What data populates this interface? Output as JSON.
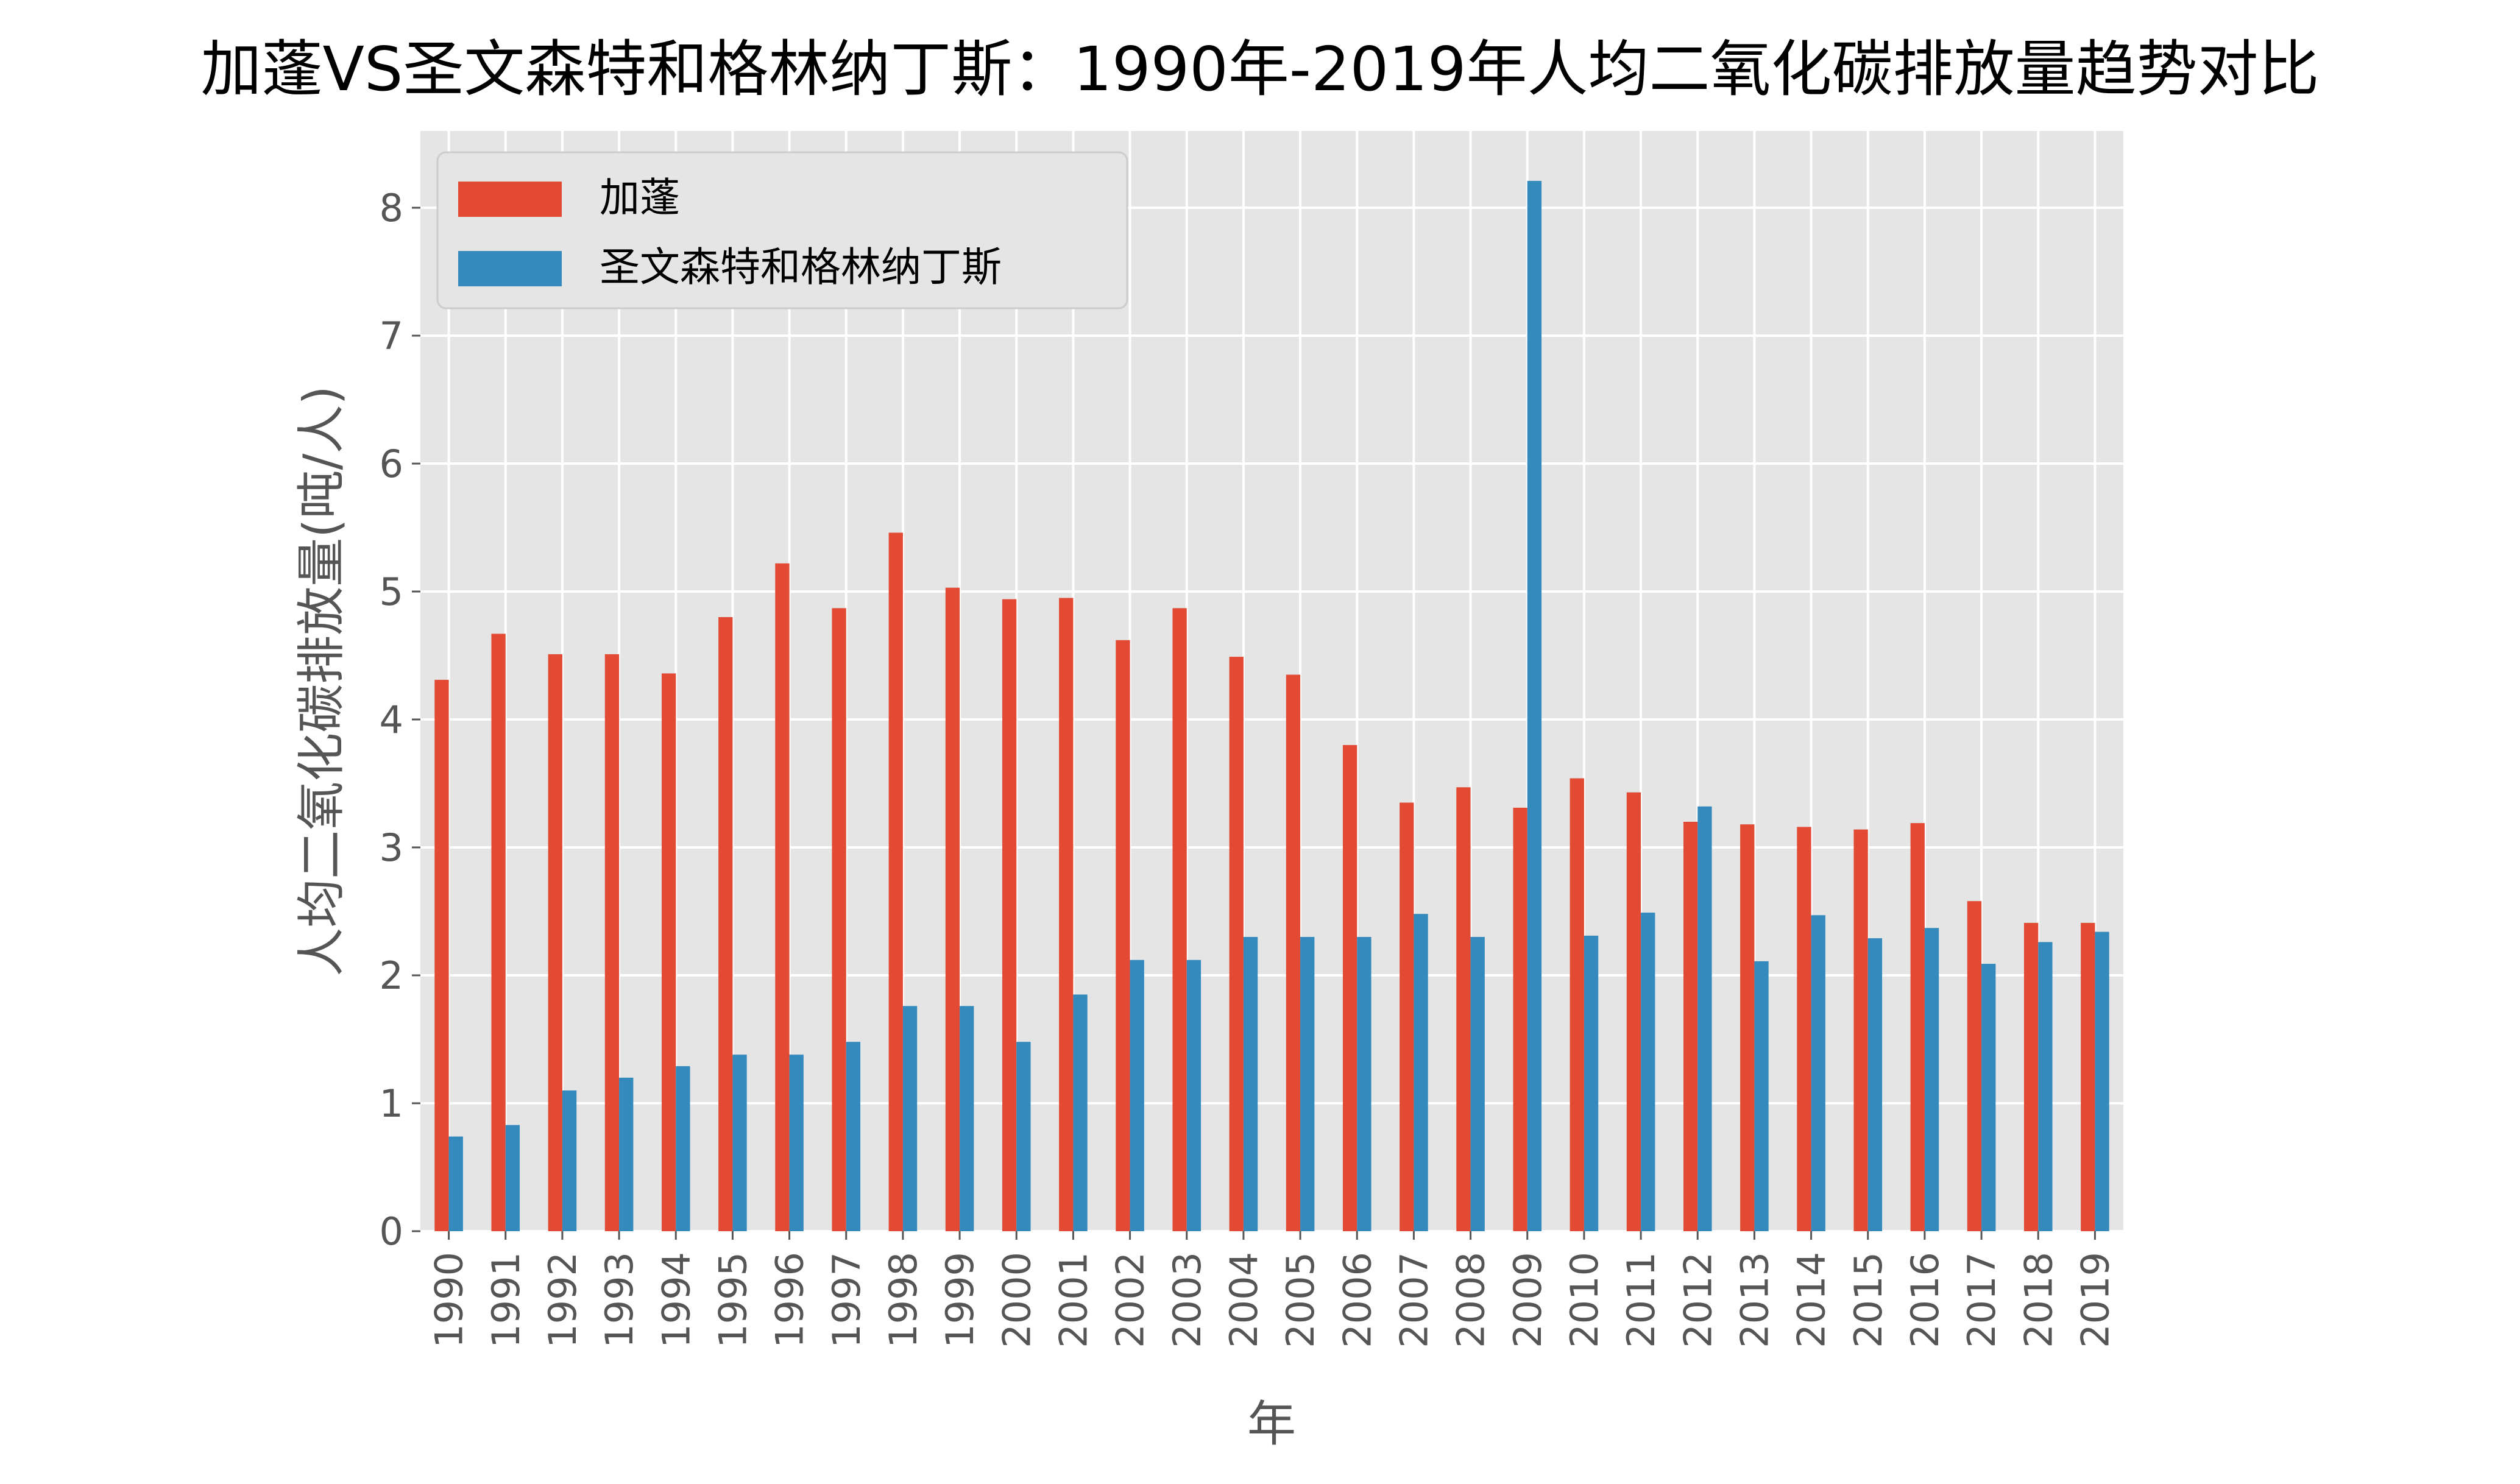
{
  "chart_data": {
    "type": "bar",
    "title": "加蓬VS圣文森特和格林纳丁斯：1990年-2019年人均二氧化碳排放量趋势对比",
    "xlabel": "年",
    "ylabel": "人均二氧化碳排放量(吨/人)",
    "ylim": [
      0,
      8.6
    ],
    "yticks": [
      "0",
      "1",
      "2",
      "3",
      "4",
      "5",
      "6",
      "7",
      "8"
    ],
    "grid": true,
    "legend_position": "top-left",
    "categories": [
      "1990",
      "1991",
      "1992",
      "1993",
      "1994",
      "1995",
      "1996",
      "1997",
      "1998",
      "1999",
      "2000",
      "2001",
      "2002",
      "2003",
      "2004",
      "2005",
      "2006",
      "2007",
      "2008",
      "2009",
      "2010",
      "2011",
      "2012",
      "2013",
      "2014",
      "2015",
      "2016",
      "2017",
      "2018",
      "2019"
    ],
    "series": [
      {
        "name": "加蓬",
        "color": "#E24A33",
        "values": [
          4.31,
          4.67,
          4.51,
          4.51,
          4.36,
          4.8,
          5.22,
          4.87,
          5.46,
          5.03,
          4.94,
          4.95,
          4.62,
          4.87,
          4.49,
          4.35,
          3.8,
          3.35,
          3.47,
          3.31,
          3.54,
          3.43,
          3.2,
          3.18,
          3.16,
          3.14,
          3.19,
          2.58,
          2.41,
          2.41
        ]
      },
      {
        "name": "圣文森特和格林纳丁斯",
        "color": "#348ABD",
        "values": [
          0.74,
          0.83,
          1.1,
          1.2,
          1.29,
          1.38,
          1.38,
          1.48,
          1.76,
          1.76,
          1.48,
          1.85,
          2.12,
          2.12,
          2.3,
          2.3,
          2.3,
          2.48,
          2.3,
          8.21,
          2.31,
          2.49,
          3.32,
          2.11,
          2.47,
          2.29,
          2.37,
          2.09,
          2.26,
          2.34
        ]
      }
    ]
  }
}
